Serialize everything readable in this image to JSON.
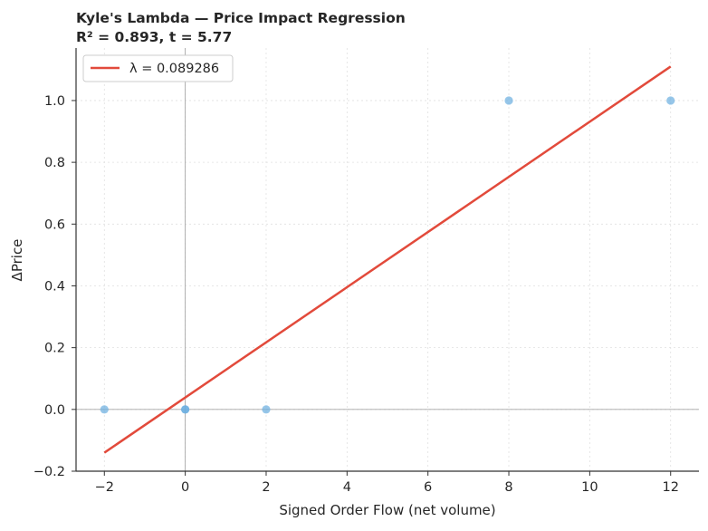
{
  "chart_data": {
    "type": "scatter",
    "title": "Kyle's Lambda — Price Impact Regression",
    "subtitle": "R² = 0.893, t = 5.77",
    "xlabel": "Signed Order Flow (net volume)",
    "ylabel": "ΔPrice",
    "xlim": [
      -2.7,
      12.7
    ],
    "ylim": [
      -0.2,
      1.17
    ],
    "xticks": [
      -2,
      0,
      2,
      4,
      6,
      8,
      10,
      12
    ],
    "yticks": [
      -0.2,
      0.0,
      0.2,
      0.4,
      0.6,
      0.8,
      1.0
    ],
    "xtick_labels": [
      "−2",
      "0",
      "2",
      "4",
      "6",
      "8",
      "10",
      "12"
    ],
    "ytick_labels": [
      "−0.2",
      "0.0",
      "0.2",
      "0.4",
      "0.6",
      "0.8",
      "1.0"
    ],
    "grid": true,
    "legend_position": "top-left",
    "points": [
      {
        "x": -2,
        "y": 0.0
      },
      {
        "x": 0,
        "y": 0.0
      },
      {
        "x": 0,
        "y": 0.0
      },
      {
        "x": 2,
        "y": 0.0
      },
      {
        "x": 8,
        "y": 1.0
      },
      {
        "x": 12,
        "y": 1.0
      }
    ],
    "fit_line": {
      "label": "λ = 0.089286",
      "x": [
        -2,
        12
      ],
      "y": [
        -0.14,
        1.11
      ]
    },
    "reference_lines": {
      "x": 0,
      "y": 0
    },
    "colors": {
      "points": "#6aaee0",
      "fit": "#e24a3b",
      "reference": "#a6a6a6",
      "grid": "#e0e0e0"
    }
  }
}
